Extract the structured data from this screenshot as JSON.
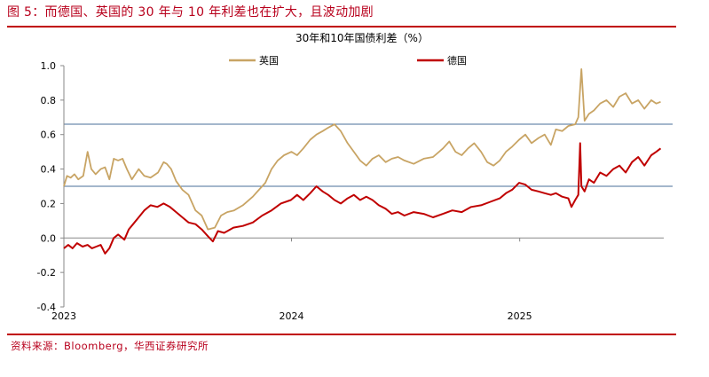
{
  "figure": {
    "caption": "图 5：而德国、英国的 30 年与 10 年利差也在扩大，且波动加剧",
    "source": "资料来源：Bloomberg，华西证券研究所"
  },
  "colors": {
    "uk": "#c8a464",
    "de": "#c00000",
    "refline": "#4a6f9a",
    "accent": "#c00000"
  },
  "chart_data": {
    "type": "line",
    "title": "30年和10年国债利差（%）",
    "xlabel": "",
    "ylabel": "",
    "ylim": [
      -0.4,
      1.0
    ],
    "yticks": [
      "1.0",
      "0.8",
      "0.6",
      "0.4",
      "0.2",
      "0.0",
      "-0.2",
      "-0.4"
    ],
    "xticks": [
      "2023",
      "2024",
      "2025"
    ],
    "xlim": [
      "2023-01-01",
      "2025-08-20"
    ],
    "legend_position": "top",
    "reference_lines": [
      0.66,
      0.3
    ],
    "series": [
      {
        "name": "英国",
        "color": "#c8a464",
        "points": [
          [
            "2023-01-01",
            0.3
          ],
          [
            "2023-01-06",
            0.36
          ],
          [
            "2023-01-12",
            0.35
          ],
          [
            "2023-01-18",
            0.37
          ],
          [
            "2023-01-24",
            0.34
          ],
          [
            "2023-02-01",
            0.36
          ],
          [
            "2023-02-08",
            0.5
          ],
          [
            "2023-02-14",
            0.4
          ],
          [
            "2023-02-21",
            0.37
          ],
          [
            "2023-03-01",
            0.4
          ],
          [
            "2023-03-08",
            0.41
          ],
          [
            "2023-03-15",
            0.34
          ],
          [
            "2023-03-22",
            0.46
          ],
          [
            "2023-03-29",
            0.45
          ],
          [
            "2023-04-05",
            0.46
          ],
          [
            "2023-04-12",
            0.4
          ],
          [
            "2023-04-20",
            0.34
          ],
          [
            "2023-05-01",
            0.4
          ],
          [
            "2023-05-10",
            0.36
          ],
          [
            "2023-05-20",
            0.35
          ],
          [
            "2023-06-01",
            0.38
          ],
          [
            "2023-06-10",
            0.44
          ],
          [
            "2023-06-15",
            0.43
          ],
          [
            "2023-06-22",
            0.4
          ],
          [
            "2023-06-30",
            0.33
          ],
          [
            "2023-07-10",
            0.28
          ],
          [
            "2023-07-20",
            0.25
          ],
          [
            "2023-07-31",
            0.16
          ],
          [
            "2023-08-10",
            0.13
          ],
          [
            "2023-08-20",
            0.05
          ],
          [
            "2023-08-31",
            0.06
          ],
          [
            "2023-09-10",
            0.13
          ],
          [
            "2023-09-20",
            0.15
          ],
          [
            "2023-10-01",
            0.16
          ],
          [
            "2023-10-15",
            0.19
          ],
          [
            "2023-10-31",
            0.24
          ],
          [
            "2023-11-10",
            0.28
          ],
          [
            "2023-11-20",
            0.32
          ],
          [
            "2023-11-30",
            0.4
          ],
          [
            "2023-12-10",
            0.45
          ],
          [
            "2023-12-20",
            0.48
          ],
          [
            "2024-01-01",
            0.5
          ],
          [
            "2024-01-10",
            0.48
          ],
          [
            "2024-01-20",
            0.52
          ],
          [
            "2024-01-31",
            0.57
          ],
          [
            "2024-02-10",
            0.6
          ],
          [
            "2024-02-20",
            0.62
          ],
          [
            "2024-02-29",
            0.64
          ],
          [
            "2024-03-10",
            0.66
          ],
          [
            "2024-03-20",
            0.62
          ],
          [
            "2024-03-31",
            0.55
          ],
          [
            "2024-04-10",
            0.5
          ],
          [
            "2024-04-20",
            0.45
          ],
          [
            "2024-04-30",
            0.42
          ],
          [
            "2024-05-10",
            0.46
          ],
          [
            "2024-05-20",
            0.48
          ],
          [
            "2024-05-31",
            0.44
          ],
          [
            "2024-06-10",
            0.46
          ],
          [
            "2024-06-20",
            0.47
          ],
          [
            "2024-06-30",
            0.45
          ],
          [
            "2024-07-15",
            0.43
          ],
          [
            "2024-07-31",
            0.46
          ],
          [
            "2024-08-15",
            0.47
          ],
          [
            "2024-08-31",
            0.52
          ],
          [
            "2024-09-10",
            0.56
          ],
          [
            "2024-09-20",
            0.5
          ],
          [
            "2024-09-30",
            0.48
          ],
          [
            "2024-10-10",
            0.52
          ],
          [
            "2024-10-20",
            0.55
          ],
          [
            "2024-10-31",
            0.5
          ],
          [
            "2024-11-10",
            0.44
          ],
          [
            "2024-11-20",
            0.42
          ],
          [
            "2024-11-30",
            0.45
          ],
          [
            "2024-12-10",
            0.5
          ],
          [
            "2024-12-20",
            0.53
          ],
          [
            "2024-12-31",
            0.57
          ],
          [
            "2025-01-10",
            0.6
          ],
          [
            "2025-01-20",
            0.55
          ],
          [
            "2025-01-31",
            0.58
          ],
          [
            "2025-02-10",
            0.6
          ],
          [
            "2025-02-20",
            0.54
          ],
          [
            "2025-02-28",
            0.63
          ],
          [
            "2025-03-10",
            0.62
          ],
          [
            "2025-03-20",
            0.65
          ],
          [
            "2025-03-31",
            0.66
          ],
          [
            "2025-04-05",
            0.7
          ],
          [
            "2025-04-10",
            0.98
          ],
          [
            "2025-04-15",
            0.68
          ],
          [
            "2025-04-22",
            0.72
          ],
          [
            "2025-04-30",
            0.74
          ],
          [
            "2025-05-10",
            0.78
          ],
          [
            "2025-05-20",
            0.8
          ],
          [
            "2025-05-31",
            0.76
          ],
          [
            "2025-06-10",
            0.82
          ],
          [
            "2025-06-20",
            0.84
          ],
          [
            "2025-06-30",
            0.78
          ],
          [
            "2025-07-10",
            0.8
          ],
          [
            "2025-07-20",
            0.75
          ],
          [
            "2025-07-31",
            0.8
          ],
          [
            "2025-08-08",
            0.78
          ],
          [
            "2025-08-15",
            0.79
          ]
        ]
      },
      {
        "name": "德国",
        "color": "#c00000",
        "points": [
          [
            "2023-01-01",
            -0.06
          ],
          [
            "2023-01-08",
            -0.04
          ],
          [
            "2023-01-15",
            -0.06
          ],
          [
            "2023-01-22",
            -0.03
          ],
          [
            "2023-01-31",
            -0.05
          ],
          [
            "2023-02-08",
            -0.04
          ],
          [
            "2023-02-15",
            -0.06
          ],
          [
            "2023-02-22",
            -0.05
          ],
          [
            "2023-03-01",
            -0.04
          ],
          [
            "2023-03-08",
            -0.09
          ],
          [
            "2023-03-15",
            -0.06
          ],
          [
            "2023-03-22",
            0.0
          ],
          [
            "2023-03-29",
            0.02
          ],
          [
            "2023-04-08",
            -0.01
          ],
          [
            "2023-04-15",
            0.05
          ],
          [
            "2023-04-22",
            0.08
          ],
          [
            "2023-05-01",
            0.12
          ],
          [
            "2023-05-10",
            0.16
          ],
          [
            "2023-05-20",
            0.19
          ],
          [
            "2023-05-31",
            0.18
          ],
          [
            "2023-06-10",
            0.2
          ],
          [
            "2023-06-20",
            0.18
          ],
          [
            "2023-06-30",
            0.15
          ],
          [
            "2023-07-10",
            0.12
          ],
          [
            "2023-07-20",
            0.09
          ],
          [
            "2023-07-31",
            0.08
          ],
          [
            "2023-08-10",
            0.05
          ],
          [
            "2023-08-20",
            0.01
          ],
          [
            "2023-08-28",
            -0.02
          ],
          [
            "2023-09-05",
            0.04
          ],
          [
            "2023-09-15",
            0.03
          ],
          [
            "2023-09-30",
            0.06
          ],
          [
            "2023-10-15",
            0.07
          ],
          [
            "2023-10-31",
            0.09
          ],
          [
            "2023-11-15",
            0.13
          ],
          [
            "2023-11-30",
            0.16
          ],
          [
            "2023-12-15",
            0.2
          ],
          [
            "2023-12-31",
            0.22
          ],
          [
            "2024-01-10",
            0.25
          ],
          [
            "2024-01-20",
            0.22
          ],
          [
            "2024-01-31",
            0.26
          ],
          [
            "2024-02-10",
            0.3
          ],
          [
            "2024-02-20",
            0.27
          ],
          [
            "2024-02-29",
            0.25
          ],
          [
            "2024-03-10",
            0.22
          ],
          [
            "2024-03-20",
            0.2
          ],
          [
            "2024-03-31",
            0.23
          ],
          [
            "2024-04-10",
            0.25
          ],
          [
            "2024-04-20",
            0.22
          ],
          [
            "2024-04-30",
            0.24
          ],
          [
            "2024-05-10",
            0.22
          ],
          [
            "2024-05-20",
            0.19
          ],
          [
            "2024-05-31",
            0.17
          ],
          [
            "2024-06-10",
            0.14
          ],
          [
            "2024-06-20",
            0.15
          ],
          [
            "2024-06-30",
            0.13
          ],
          [
            "2024-07-15",
            0.15
          ],
          [
            "2024-07-31",
            0.14
          ],
          [
            "2024-08-15",
            0.12
          ],
          [
            "2024-08-31",
            0.14
          ],
          [
            "2024-09-15",
            0.16
          ],
          [
            "2024-09-30",
            0.15
          ],
          [
            "2024-10-15",
            0.18
          ],
          [
            "2024-10-31",
            0.19
          ],
          [
            "2024-11-15",
            0.21
          ],
          [
            "2024-11-30",
            0.23
          ],
          [
            "2024-12-10",
            0.26
          ],
          [
            "2024-12-20",
            0.28
          ],
          [
            "2024-12-31",
            0.32
          ],
          [
            "2025-01-10",
            0.31
          ],
          [
            "2025-01-20",
            0.28
          ],
          [
            "2025-01-31",
            0.27
          ],
          [
            "2025-02-10",
            0.26
          ],
          [
            "2025-02-20",
            0.25
          ],
          [
            "2025-02-28",
            0.26
          ],
          [
            "2025-03-10",
            0.24
          ],
          [
            "2025-03-20",
            0.23
          ],
          [
            "2025-03-25",
            0.18
          ],
          [
            "2025-03-31",
            0.22
          ],
          [
            "2025-04-05",
            0.25
          ],
          [
            "2025-04-08",
            0.55
          ],
          [
            "2025-04-10",
            0.3
          ],
          [
            "2025-04-15",
            0.27
          ],
          [
            "2025-04-22",
            0.34
          ],
          [
            "2025-04-30",
            0.32
          ],
          [
            "2025-05-10",
            0.38
          ],
          [
            "2025-05-20",
            0.36
          ],
          [
            "2025-05-31",
            0.4
          ],
          [
            "2025-06-10",
            0.42
          ],
          [
            "2025-06-20",
            0.38
          ],
          [
            "2025-06-30",
            0.44
          ],
          [
            "2025-07-10",
            0.47
          ],
          [
            "2025-07-20",
            0.42
          ],
          [
            "2025-07-31",
            0.48
          ],
          [
            "2025-08-08",
            0.5
          ],
          [
            "2025-08-15",
            0.52
          ]
        ]
      }
    ]
  }
}
